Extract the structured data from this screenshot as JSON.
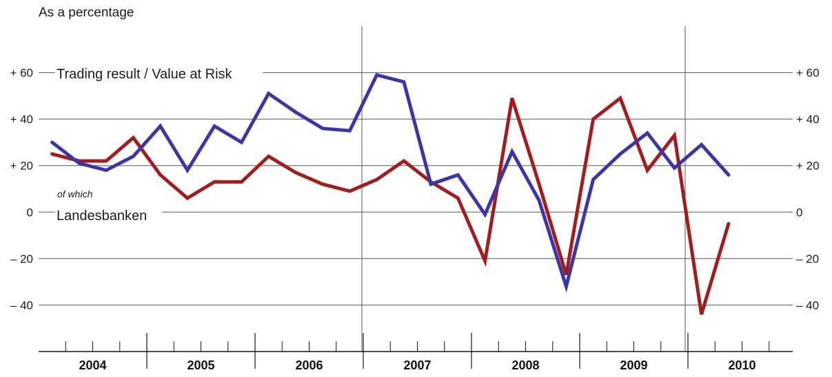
{
  "chart_data": {
    "type": "line",
    "unit_label": "As a percentage",
    "x_unit": "quarter",
    "categories": [
      "2004",
      "2005",
      "2006",
      "2007",
      "2008",
      "2009",
      "2010"
    ],
    "ylim": [
      -60,
      80
    ],
    "y_ticks": [
      {
        "value": 60,
        "left": "+ 60",
        "right": "+ 60"
      },
      {
        "value": 40,
        "left": "+ 40",
        "right": "+ 40"
      },
      {
        "value": 20,
        "left": "+ 20",
        "right": "+ 20"
      },
      {
        "value": 0,
        "left": "0",
        "right": "0"
      },
      {
        "value": -20,
        "left": "– 20",
        "right": "– 20"
      },
      {
        "value": -40,
        "left": "– 40",
        "right": "– 40"
      }
    ],
    "grid": true,
    "series": [
      {
        "name": "Trading result / Value at Risk",
        "color": "#3b35a8",
        "x": [
          1,
          2,
          3,
          4,
          5,
          6,
          7,
          8,
          9,
          10,
          11,
          12,
          13,
          14,
          15,
          16,
          17,
          18,
          19,
          20,
          21,
          22,
          23,
          24,
          25,
          26
        ],
        "values": [
          30,
          21,
          18,
          24,
          37,
          18,
          37,
          30,
          51,
          43,
          36,
          35,
          59,
          56,
          12,
          16,
          -1,
          26,
          5,
          -32,
          14,
          25,
          34,
          19,
          29,
          16
        ]
      },
      {
        "name": "of which Landesbanken",
        "note": "of which",
        "label": "Landesbanken",
        "color": "#a31d1d",
        "x": [
          1,
          2,
          3,
          4,
          5,
          6,
          7,
          8,
          9,
          10,
          11,
          12,
          13,
          14,
          15,
          16,
          17,
          18,
          19,
          20,
          21,
          22,
          23,
          24,
          25,
          26
        ],
        "values": [
          25,
          22,
          22,
          32,
          16,
          6,
          13,
          13,
          24,
          17,
          12,
          9,
          14,
          22,
          13,
          6,
          -21,
          49,
          12,
          -27,
          40,
          49,
          18,
          33,
          -44,
          -5
        ]
      }
    ]
  }
}
